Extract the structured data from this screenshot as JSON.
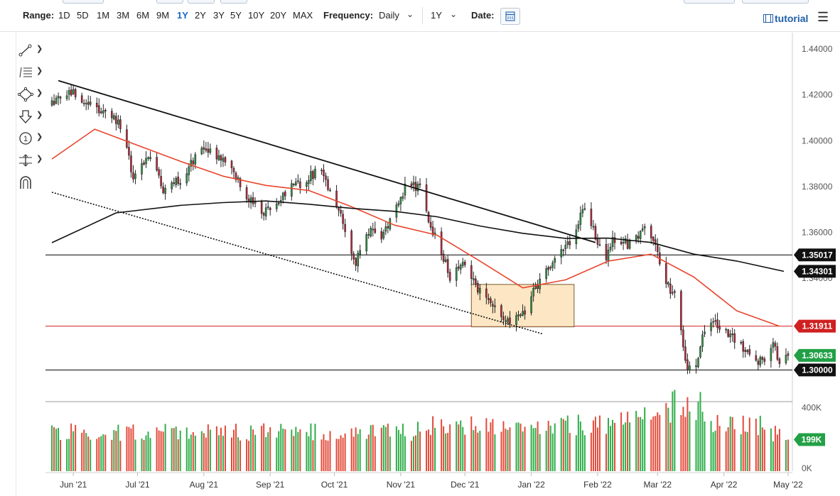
{
  "toolbar": {
    "range_label": "Range:",
    "ranges": [
      "1D",
      "5D",
      "1M",
      "3M",
      "6M",
      "9M",
      "1Y",
      "2Y",
      "3Y",
      "5Y",
      "10Y",
      "20Y",
      "MAX"
    ],
    "selected_range": "1Y",
    "frequency_label": "Frequency:",
    "frequency_value": "Daily",
    "period_value": "1Y",
    "date_label": "Date:",
    "tutorial_label": "tutorial"
  },
  "tools": [
    "trendline-tool",
    "fibonacci-tool",
    "shapes-tool",
    "arrow-tool",
    "number-marker-tool",
    "measure-tool",
    "magnet-tool"
  ],
  "chart_data": {
    "type": "candlestick",
    "symbol_note": "",
    "price_axis": {
      "ticks": [
        1.44,
        1.42,
        1.4,
        1.38,
        1.36,
        1.34,
        1.32,
        1.3
      ],
      "tick_labels": [
        "1.44000",
        "1.42000",
        "1.40000",
        "1.38000",
        "1.36000",
        "1.34000",
        "",
        "1.30000"
      ],
      "ylim": [
        1.2865,
        1.4465
      ]
    },
    "time_axis": {
      "labels": [
        "Jun '21",
        "Jul '21",
        "Aug '21",
        "Sep '21",
        "Oct '21",
        "Nov '21",
        "Dec '21",
        "Jan '22",
        "Feb '22",
        "Mar '22",
        "Apr '22",
        "May '22"
      ],
      "label_days": [
        10,
        40,
        71,
        102,
        132,
        163,
        193,
        224,
        255,
        283,
        314,
        344
      ],
      "x_range_days": [
        -3,
        346
      ]
    },
    "price_labels": [
      {
        "value": 1.35017,
        "text": "1.35017",
        "style": "dark"
      },
      {
        "value": 1.34301,
        "text": "1.34301",
        "style": "dark"
      },
      {
        "value": 1.31911,
        "text": "1.31911",
        "style": "red"
      },
      {
        "value": 1.30633,
        "text": "1.30633",
        "style": "green"
      },
      {
        "value": 1.3,
        "text": "1.30000",
        "style": "dark"
      }
    ],
    "horizontal_lines": [
      {
        "value": 1.35017,
        "color": "#000000"
      },
      {
        "value": 1.31911,
        "color": "#d02020"
      },
      {
        "value": 1.3,
        "color": "#000000"
      }
    ],
    "trend_lines": [
      {
        "style": "solid",
        "from": [
          3,
          1.4262
        ],
        "to": [
          254,
          1.3556
        ]
      },
      {
        "style": "dotted",
        "from": [
          0,
          1.3775
        ],
        "to": [
          229,
          1.3158
        ]
      }
    ],
    "consolidation_box": {
      "x0": 196,
      "x1": 244,
      "y0": 1.3188,
      "y1": 1.3373,
      "fill": "#fce2b8"
    },
    "anchors": [
      [
        0,
        1.4165
      ],
      [
        10,
        1.4205
      ],
      [
        18,
        1.4155
      ],
      [
        28,
        1.4115
      ],
      [
        34,
        1.4035
      ],
      [
        38,
        1.3815
      ],
      [
        45,
        1.3945
      ],
      [
        52,
        1.3795
      ],
      [
        60,
        1.3835
      ],
      [
        70,
        1.3975
      ],
      [
        78,
        1.3915
      ],
      [
        84,
        1.3885
      ],
      [
        90,
        1.3755
      ],
      [
        100,
        1.3685
      ],
      [
        110,
        1.3785
      ],
      [
        118,
        1.3815
      ],
      [
        124,
        1.3875
      ],
      [
        130,
        1.3795
      ],
      [
        138,
        1.3585
      ],
      [
        142,
        1.3475
      ],
      [
        148,
        1.3605
      ],
      [
        155,
        1.3585
      ],
      [
        162,
        1.3735
      ],
      [
        166,
        1.3815
      ],
      [
        172,
        1.3795
      ],
      [
        176,
        1.3645
      ],
      [
        182,
        1.3525
      ],
      [
        186,
        1.3405
      ],
      [
        192,
        1.3485
      ],
      [
        196,
        1.3395
      ],
      [
        204,
        1.3285
      ],
      [
        214,
        1.3215
      ],
      [
        220,
        1.3245
      ],
      [
        226,
        1.3355
      ],
      [
        232,
        1.3445
      ],
      [
        238,
        1.3505
      ],
      [
        244,
        1.3595
      ],
      [
        248,
        1.3715
      ],
      [
        254,
        1.3585
      ],
      [
        258,
        1.3465
      ],
      [
        262,
        1.3575
      ],
      [
        270,
        1.3545
      ],
      [
        276,
        1.3615
      ],
      [
        282,
        1.3565
      ],
      [
        286,
        1.3395
      ],
      [
        292,
        1.3305
      ],
      [
        296,
        1.3025
      ],
      [
        300,
        1.3005
      ],
      [
        306,
        1.3205
      ],
      [
        312,
        1.3185
      ],
      [
        318,
        1.3135
      ],
      [
        326,
        1.3085
      ],
      [
        332,
        1.3025
      ],
      [
        338,
        1.3115
      ],
      [
        340,
        1.3015
      ],
      [
        344,
        1.3063
      ]
    ],
    "sma_fast": [
      [
        0,
        1.392
      ],
      [
        20,
        1.405
      ],
      [
        40,
        1.398
      ],
      [
        60,
        1.391
      ],
      [
        80,
        1.3845
      ],
      [
        100,
        1.3805
      ],
      [
        120,
        1.3783
      ],
      [
        140,
        1.3712
      ],
      [
        160,
        1.3632
      ],
      [
        180,
        1.3588
      ],
      [
        200,
        1.3475
      ],
      [
        220,
        1.3358
      ],
      [
        240,
        1.3393
      ],
      [
        260,
        1.3475
      ],
      [
        280,
        1.3505
      ],
      [
        300,
        1.3405
      ],
      [
        320,
        1.3258
      ],
      [
        340,
        1.3191
      ]
    ],
    "sma_slow": [
      [
        0,
        1.3555
      ],
      [
        30,
        1.3685
      ],
      [
        60,
        1.3718
      ],
      [
        80,
        1.373
      ],
      [
        100,
        1.3737
      ],
      [
        120,
        1.3723
      ],
      [
        140,
        1.3705
      ],
      [
        160,
        1.3692
      ],
      [
        180,
        1.3668
      ],
      [
        200,
        1.3628
      ],
      [
        220,
        1.3596
      ],
      [
        240,
        1.3574
      ],
      [
        260,
        1.3575
      ],
      [
        280,
        1.3556
      ],
      [
        300,
        1.3505
      ],
      [
        320,
        1.3475
      ],
      [
        342,
        1.343
      ]
    ],
    "volume_axis": {
      "ticks": [
        0,
        400
      ],
      "tick_labels": [
        "0K",
        "400K"
      ],
      "ylim": [
        0,
        420
      ]
    },
    "volume_label": {
      "value": 199,
      "text": "199K"
    },
    "volume_ranges": [
      [
        0,
        170,
        245
      ],
      [
        170,
        260,
        290
      ],
      [
        260,
        285,
        330
      ],
      [
        285,
        305,
        390
      ],
      [
        305,
        335,
        290
      ],
      [
        335,
        344,
        240
      ]
    ]
  }
}
